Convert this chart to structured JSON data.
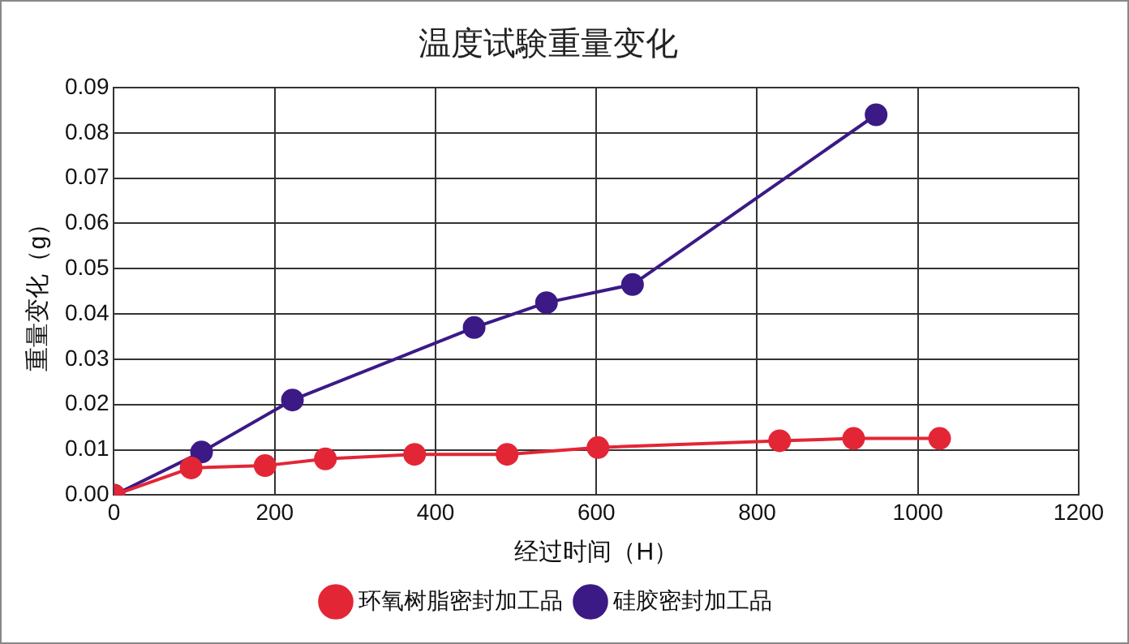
{
  "chart_data": {
    "type": "line",
    "title": "温度试験重量变化",
    "xlabel": "经过时间（H）",
    "ylabel": "重量变化（g）",
    "xlim": [
      0,
      1200
    ],
    "xticks": [
      0,
      200,
      400,
      600,
      800,
      1000,
      1200
    ],
    "ylim": [
      0,
      0.09
    ],
    "yticks": [
      {
        "value": 0,
        "label": "0.00"
      },
      {
        "value": 0.01,
        "label": "0.01"
      },
      {
        "value": 0.02,
        "label": "0.02"
      },
      {
        "value": 0.03,
        "label": "0.03"
      },
      {
        "value": 0.04,
        "label": "0.04"
      },
      {
        "value": 0.05,
        "label": "0.05"
      },
      {
        "value": 0.06,
        "label": "0.06"
      },
      {
        "value": 0.07,
        "label": "0.07"
      },
      {
        "value": 0.08,
        "label": "0.08"
      },
      {
        "value": 0.09,
        "label": "0.09"
      }
    ],
    "grid": true,
    "legend": "bottom",
    "marker": "circle",
    "line_style": "solid",
    "series": [
      {
        "name": "环氧树脂密封加工品",
        "color": "#e32636",
        "x": [
          0,
          96,
          188,
          263,
          374,
          489,
          602,
          828,
          920,
          1027
        ],
        "values": [
          0,
          0.006,
          0.0065,
          0.008,
          0.009,
          0.009,
          0.0105,
          0.012,
          0.0125,
          0.0125
        ]
      },
      {
        "name": "硅胶密封加工品",
        "color": "#3b1a86",
        "x": [
          0,
          109,
          222,
          448,
          538,
          645,
          948
        ],
        "values": [
          0,
          0.0095,
          0.021,
          0.037,
          0.0425,
          0.0465,
          0.084
        ]
      }
    ]
  }
}
